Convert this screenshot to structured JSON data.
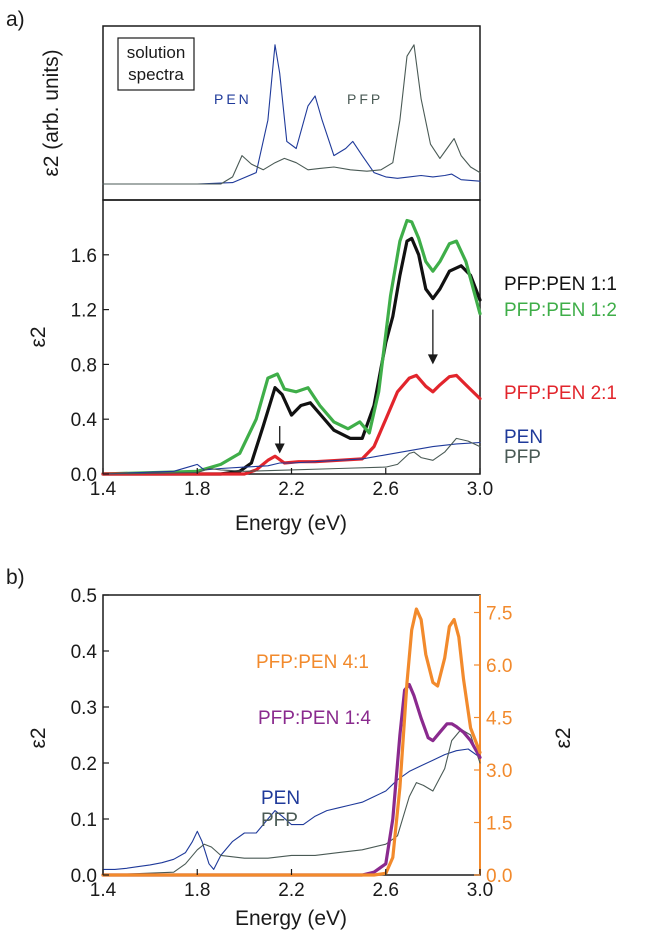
{
  "panel_labels": {
    "a": "a)",
    "b": "b)"
  },
  "chart_data": [
    {
      "type": "line",
      "panel": "a) top",
      "ylabel": "ε2 (arb. units)",
      "xlim": [
        1.4,
        3.0
      ],
      "ytick_labels": [],
      "annotations": {
        "box_line1": "solution",
        "box_line2": "spectra",
        "pen_label": "PEN",
        "pfp_label": "PFP"
      },
      "series": [
        {
          "name": "PEN",
          "color": "#1f3a9a",
          "x": [
            1.4,
            1.8,
            1.95,
            2.05,
            2.1,
            2.13,
            2.15,
            2.18,
            2.22,
            2.27,
            2.3,
            2.33,
            2.38,
            2.43,
            2.46,
            2.5,
            2.55,
            2.6,
            2.65,
            2.7,
            2.75,
            2.8,
            2.85,
            2.88,
            2.92,
            3.0
          ],
          "y": [
            0.0,
            0.0,
            0.01,
            0.08,
            0.45,
            0.98,
            0.78,
            0.3,
            0.25,
            0.55,
            0.62,
            0.45,
            0.2,
            0.25,
            0.3,
            0.2,
            0.08,
            0.05,
            0.04,
            0.05,
            0.06,
            0.05,
            0.06,
            0.07,
            0.03,
            0.02
          ]
        },
        {
          "name": "PFP",
          "color": "#4a5a55",
          "x": [
            1.4,
            1.9,
            1.95,
            1.99,
            2.03,
            2.08,
            2.13,
            2.17,
            2.22,
            2.27,
            2.32,
            2.38,
            2.45,
            2.52,
            2.58,
            2.63,
            2.66,
            2.69,
            2.72,
            2.75,
            2.79,
            2.83,
            2.86,
            2.89,
            2.92,
            2.96,
            3.0
          ],
          "y": [
            0.0,
            0.0,
            0.05,
            0.2,
            0.14,
            0.1,
            0.15,
            0.18,
            0.15,
            0.1,
            0.11,
            0.12,
            0.1,
            0.09,
            0.1,
            0.15,
            0.45,
            0.9,
            0.98,
            0.6,
            0.28,
            0.18,
            0.25,
            0.32,
            0.2,
            0.12,
            0.08
          ]
        }
      ]
    },
    {
      "type": "line",
      "panel": "a) bottom",
      "xlabel": "Energy (eV)",
      "ylabel": "ε2",
      "xlim": [
        1.4,
        3.0
      ],
      "ylim": [
        0.0,
        2.0
      ],
      "xticks": [
        1.4,
        1.8,
        2.2,
        2.6,
        3.0
      ],
      "xtick_labels": [
        "1.4",
        "1.8",
        "2.2",
        "2.6",
        "3.0"
      ],
      "yticks": [
        0.0,
        0.4,
        0.8,
        1.2,
        1.6
      ],
      "ytick_labels": [
        "0.0",
        "0.4",
        "0.8",
        "1.2",
        "1.6"
      ],
      "series": [
        {
          "name": "PFP:PEN 1:1",
          "color": "#111111",
          "x": [
            1.4,
            1.9,
            1.98,
            2.03,
            2.08,
            2.13,
            2.16,
            2.2,
            2.24,
            2.28,
            2.33,
            2.38,
            2.45,
            2.5,
            2.55,
            2.6,
            2.63,
            2.66,
            2.69,
            2.71,
            2.74,
            2.77,
            2.8,
            2.83,
            2.87,
            2.92,
            2.96,
            3.0
          ],
          "y": [
            0.0,
            0.0,
            0.02,
            0.08,
            0.35,
            0.63,
            0.58,
            0.43,
            0.5,
            0.52,
            0.42,
            0.32,
            0.26,
            0.26,
            0.5,
            0.96,
            1.15,
            1.45,
            1.7,
            1.72,
            1.6,
            1.35,
            1.28,
            1.35,
            1.48,
            1.52,
            1.45,
            1.27
          ]
        },
        {
          "name": "PFP:PEN 1:2",
          "color": "#3fae49",
          "x": [
            1.4,
            1.8,
            1.9,
            1.98,
            2.05,
            2.1,
            2.14,
            2.17,
            2.22,
            2.27,
            2.32,
            2.38,
            2.44,
            2.49,
            2.53,
            2.57,
            2.62,
            2.66,
            2.69,
            2.71,
            2.74,
            2.77,
            2.8,
            2.83,
            2.87,
            2.9,
            2.94,
            3.0
          ],
          "y": [
            0.0,
            0.02,
            0.07,
            0.15,
            0.4,
            0.7,
            0.73,
            0.62,
            0.6,
            0.63,
            0.5,
            0.38,
            0.33,
            0.38,
            0.3,
            0.6,
            1.3,
            1.7,
            1.85,
            1.84,
            1.72,
            1.55,
            1.48,
            1.55,
            1.68,
            1.7,
            1.55,
            1.17
          ]
        },
        {
          "name": "PFP:PEN 2:1",
          "color": "#e2252c",
          "x": [
            1.4,
            2.0,
            2.05,
            2.1,
            2.13,
            2.17,
            2.23,
            2.3,
            2.4,
            2.5,
            2.55,
            2.6,
            2.65,
            2.7,
            2.73,
            2.77,
            2.8,
            2.83,
            2.87,
            2.9,
            2.94,
            3.0
          ],
          "y": [
            0.0,
            0.0,
            0.03,
            0.1,
            0.13,
            0.08,
            0.09,
            0.09,
            0.1,
            0.11,
            0.2,
            0.4,
            0.6,
            0.7,
            0.72,
            0.64,
            0.6,
            0.65,
            0.71,
            0.72,
            0.65,
            0.55
          ]
        },
        {
          "name": "PEN",
          "color": "#1f3a9a",
          "x": [
            1.4,
            1.7,
            1.78,
            1.8,
            1.83,
            1.9,
            2.0,
            2.1,
            2.15,
            2.2,
            2.3,
            2.4,
            2.5,
            2.6,
            2.7,
            2.8,
            2.9,
            3.0
          ],
          "y": [
            0.0,
            0.02,
            0.06,
            0.07,
            0.03,
            0.04,
            0.05,
            0.06,
            0.08,
            0.08,
            0.09,
            0.1,
            0.11,
            0.14,
            0.17,
            0.2,
            0.22,
            0.23
          ]
        },
        {
          "name": "PFP",
          "color": "#4a5a55",
          "x": [
            1.4,
            1.8,
            1.85,
            1.9,
            2.0,
            2.2,
            2.4,
            2.6,
            2.65,
            2.7,
            2.72,
            2.75,
            2.8,
            2.85,
            2.9,
            2.95,
            3.0
          ],
          "y": [
            0.0,
            0.01,
            0.04,
            0.03,
            0.02,
            0.03,
            0.04,
            0.05,
            0.07,
            0.15,
            0.16,
            0.12,
            0.1,
            0.16,
            0.26,
            0.24,
            0.2
          ]
        }
      ],
      "labels": [
        {
          "text": "PFP:PEN 1:1",
          "color": "#111111"
        },
        {
          "text": "PFP:PEN 1:2",
          "color": "#3fae49"
        },
        {
          "text": "PFP:PEN 2:1",
          "color": "#e2252c"
        },
        {
          "text": "PEN",
          "color": "#1f3a9a"
        },
        {
          "text": "PFP",
          "color": "#4a5a55"
        }
      ],
      "arrows": [
        {
          "x": 2.15,
          "y_from": 0.35,
          "y_to": 0.15
        },
        {
          "x": 2.8,
          "y_from": 1.2,
          "y_to": 0.8
        }
      ]
    },
    {
      "type": "line",
      "panel": "b)",
      "xlabel": "Energy (eV)",
      "ylabel": "ε2",
      "ylabel_right": "ε2",
      "xlim": [
        1.4,
        3.0
      ],
      "ylim": [
        0.0,
        0.5
      ],
      "ylim_right": [
        0.0,
        8.0
      ],
      "xticks": [
        1.4,
        1.8,
        2.2,
        2.6,
        3.0
      ],
      "xtick_labels": [
        "1.4",
        "1.8",
        "2.2",
        "2.6",
        "3.0"
      ],
      "yticks": [
        0.0,
        0.1,
        0.2,
        0.3,
        0.4,
        0.5
      ],
      "ytick_labels": [
        "0.0",
        "0.1",
        "0.2",
        "0.3",
        "0.4",
        "0.5"
      ],
      "yticks_right": [
        0.0,
        1.5,
        3.0,
        4.5,
        6.0,
        7.5
      ],
      "ytick_labels_right": [
        "0.0",
        "1.5",
        "3.0",
        "4.5",
        "6.0",
        "7.5"
      ],
      "right_axis_color": "#f28a2c",
      "series": [
        {
          "name": "PEN",
          "axis": "left",
          "color": "#1f3a9a",
          "x": [
            1.4,
            1.45,
            1.5,
            1.55,
            1.6,
            1.65,
            1.7,
            1.75,
            1.78,
            1.8,
            1.82,
            1.85,
            1.87,
            1.9,
            1.95,
            2.0,
            2.05,
            2.1,
            2.13,
            2.16,
            2.2,
            2.25,
            2.3,
            2.35,
            2.4,
            2.45,
            2.5,
            2.55,
            2.6,
            2.65,
            2.7,
            2.75,
            2.8,
            2.85,
            2.9,
            2.95,
            3.0
          ],
          "y": [
            0.01,
            0.01,
            0.012,
            0.015,
            0.018,
            0.022,
            0.028,
            0.04,
            0.06,
            0.078,
            0.06,
            0.02,
            0.01,
            0.035,
            0.06,
            0.075,
            0.075,
            0.1,
            0.115,
            0.105,
            0.09,
            0.09,
            0.105,
            0.115,
            0.12,
            0.125,
            0.13,
            0.14,
            0.15,
            0.17,
            0.185,
            0.195,
            0.205,
            0.215,
            0.222,
            0.225,
            0.21
          ]
        },
        {
          "name": "PFP",
          "axis": "left",
          "color": "#4a5a55",
          "x": [
            1.4,
            1.7,
            1.75,
            1.8,
            1.83,
            1.86,
            1.9,
            2.0,
            2.1,
            2.2,
            2.3,
            2.4,
            2.5,
            2.6,
            2.65,
            2.7,
            2.73,
            2.76,
            2.8,
            2.85,
            2.88,
            2.92,
            2.96,
            3.0
          ],
          "y": [
            0.0,
            0.005,
            0.02,
            0.045,
            0.055,
            0.05,
            0.035,
            0.03,
            0.03,
            0.035,
            0.035,
            0.04,
            0.045,
            0.055,
            0.07,
            0.14,
            0.165,
            0.16,
            0.15,
            0.19,
            0.24,
            0.26,
            0.25,
            0.2
          ]
        },
        {
          "name": "PFP:PEN 1:4",
          "axis": "left",
          "color": "#8a2a8e",
          "x": [
            1.4,
            2.5,
            2.55,
            2.6,
            2.63,
            2.66,
            2.68,
            2.7,
            2.72,
            2.75,
            2.78,
            2.8,
            2.83,
            2.86,
            2.88,
            2.9,
            2.93,
            2.96,
            3.0
          ],
          "y": [
            0.0,
            0.0,
            0.005,
            0.02,
            0.1,
            0.25,
            0.33,
            0.34,
            0.32,
            0.28,
            0.245,
            0.24,
            0.255,
            0.27,
            0.27,
            0.265,
            0.255,
            0.24,
            0.21
          ]
        },
        {
          "name": "PFP:PEN 4:1",
          "axis": "right",
          "color": "#f28a2c",
          "x": [
            1.4,
            2.55,
            2.6,
            2.63,
            2.66,
            2.69,
            2.71,
            2.73,
            2.75,
            2.77,
            2.8,
            2.82,
            2.85,
            2.87,
            2.89,
            2.91,
            2.93,
            2.96,
            3.0
          ],
          "y": [
            0.0,
            0.0,
            0.05,
            0.5,
            2.5,
            5.5,
            7.0,
            7.6,
            7.3,
            6.3,
            5.5,
            5.4,
            6.2,
            7.1,
            7.3,
            6.8,
            5.6,
            4.2,
            3.5
          ]
        }
      ],
      "labels": [
        {
          "text": "PFP:PEN 4:1",
          "color": "#f28a2c"
        },
        {
          "text": "PFP:PEN 1:4",
          "color": "#8a2a8e"
        },
        {
          "text": "PEN",
          "color": "#1f3a9a"
        },
        {
          "text": "PFP",
          "color": "#4a5a55"
        }
      ]
    }
  ]
}
